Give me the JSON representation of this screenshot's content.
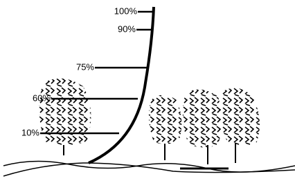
{
  "labels": [
    "100%",
    "90%",
    "75%",
    "60%",
    "10%"
  ]
}
